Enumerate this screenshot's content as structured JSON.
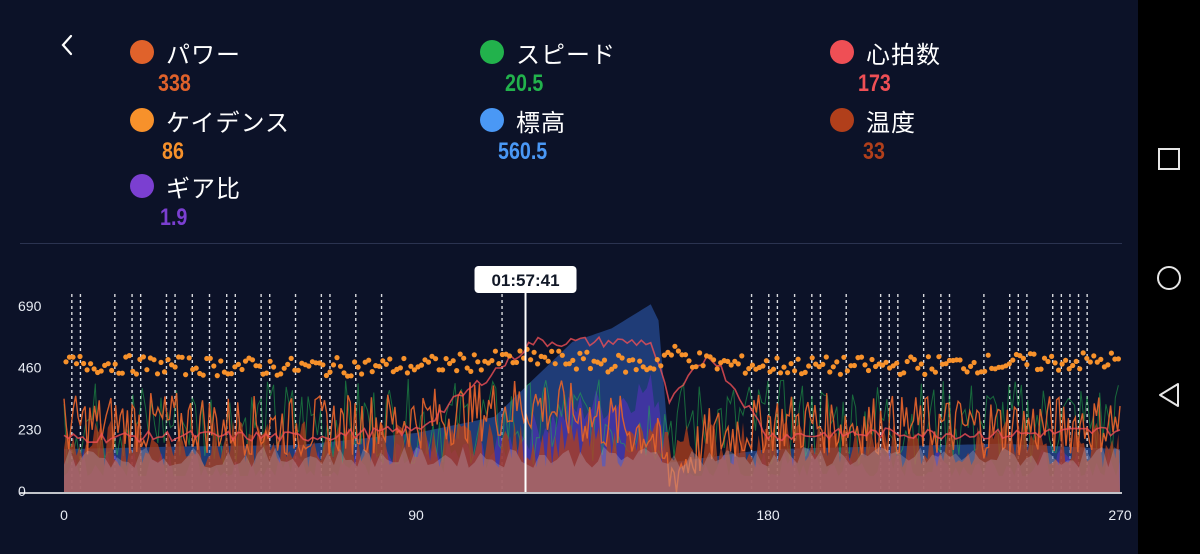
{
  "metrics": [
    {
      "id": "power",
      "label": "パワー",
      "value": "338",
      "color": "#e0622b"
    },
    {
      "id": "speed",
      "label": "スピード",
      "value": "20.5",
      "color": "#22b24c"
    },
    {
      "id": "heart",
      "label": "心拍数",
      "value": "173",
      "color": "#ef4f55"
    },
    {
      "id": "cadence",
      "label": "ケイデンス",
      "value": "86",
      "color": "#f7912b"
    },
    {
      "id": "altitude",
      "label": "標高",
      "value": "560.5",
      "color": "#4a98f5"
    },
    {
      "id": "temperature",
      "label": "温度",
      "value": "33",
      "color": "#b13f1b"
    },
    {
      "id": "gear",
      "label": "ギア比",
      "value": "1.9",
      "color": "#7b3fd1"
    }
  ],
  "cursor": {
    "time": "01:57:41",
    "x_value": 118
  },
  "nav_icons": [
    "recent-apps-icon",
    "home-icon",
    "back-triangle-icon"
  ],
  "back_icon": "chevron-left-icon",
  "chart_data": {
    "type": "area",
    "x_ticks": [
      "0",
      "90",
      "180",
      "270"
    ],
    "y_ticks": [
      "690",
      "460",
      "230",
      "0"
    ],
    "xlim": [
      0,
      270
    ],
    "ylim": [
      0,
      690
    ],
    "series": [
      {
        "name": "標高",
        "color": "#4a98f5",
        "x": [
          0,
          30,
          60,
          90,
          110,
          120,
          130,
          140,
          150,
          152,
          155,
          165,
          180,
          210,
          240,
          270
        ],
        "values": [
          160,
          170,
          175,
          220,
          280,
          420,
          560,
          610,
          700,
          640,
          110,
          130,
          160,
          170,
          180,
          160
        ]
      },
      {
        "name": "ケイデンス",
        "color": "#f7912b",
        "x": [
          0,
          30,
          60,
          90,
          120,
          150,
          155,
          165,
          180,
          210,
          240,
          270
        ],
        "values": [
          480,
          470,
          465,
          470,
          500,
          470,
          520,
          480,
          470,
          470,
          480,
          490
        ]
      },
      {
        "name": "パワー",
        "color": "#e0622b",
        "x": [
          0,
          30,
          60,
          90,
          120,
          150,
          155,
          165,
          180,
          210,
          240,
          270
        ],
        "values": [
          250,
          260,
          240,
          270,
          330,
          220,
          60,
          200,
          260,
          250,
          240,
          260
        ]
      },
      {
        "name": "心拍数",
        "color": "#ef4f55",
        "x": [
          0,
          30,
          60,
          90,
          120,
          150,
          155,
          165,
          180,
          210,
          240,
          270
        ],
        "values": [
          200,
          210,
          205,
          230,
          560,
          560,
          330,
          520,
          210,
          220,
          215,
          230
        ]
      }
    ]
  }
}
